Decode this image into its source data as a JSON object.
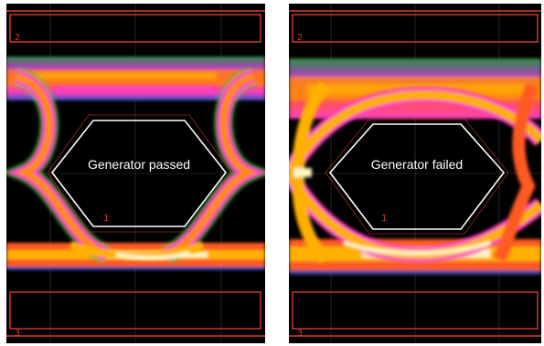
{
  "panels": [
    {
      "id": "left",
      "result_label": "Generator passed",
      "segment_labels": [
        "2",
        "1",
        "3"
      ],
      "eye_quality": "open"
    },
    {
      "id": "right",
      "result_label": "Generator failed",
      "segment_labels": [
        "2",
        "1",
        "3"
      ],
      "eye_quality": "closed"
    }
  ],
  "colors": {
    "background": "#000000",
    "mask_limit_lines": "#d73b2f",
    "mask_outline": "#ffffff",
    "persistence_hot": "#fff6c0",
    "persistence_warm": "#ffb000",
    "persistence_mid": "#ff5a20",
    "persistence_cool": "#ff40c0",
    "persistence_cold": "#3ac040",
    "persistence_coldest": "#4060ff"
  }
}
